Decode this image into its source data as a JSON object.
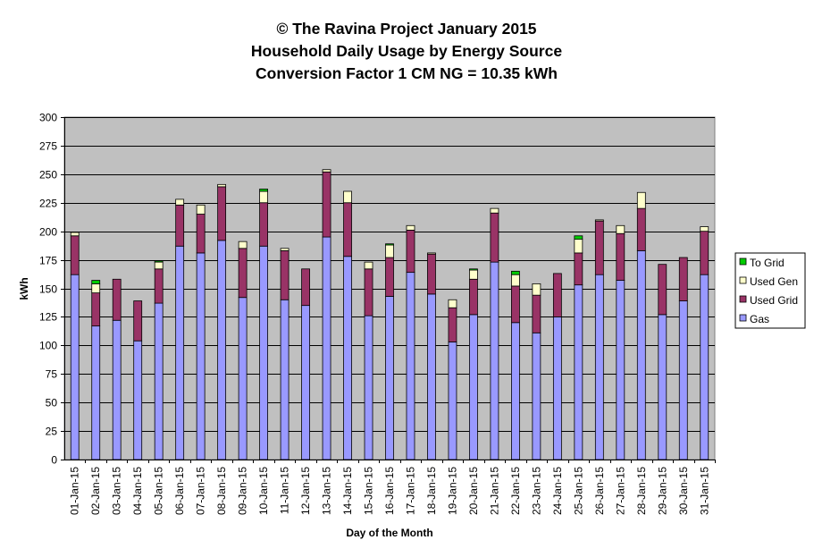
{
  "chart_data": {
    "type": "bar",
    "stacked": true,
    "title_lines": [
      "© The Ravina Project January 2015",
      "Household Daily Usage by Energy Source",
      "Conversion Factor 1 CM NG = 10.35 kWh"
    ],
    "xlabel": "Day of the Month",
    "ylabel": "kWh",
    "ylim": [
      0,
      300
    ],
    "yticks": [
      0,
      25,
      50,
      75,
      100,
      125,
      150,
      175,
      200,
      225,
      250,
      275,
      300
    ],
    "grid": true,
    "legend_position": "right",
    "categories": [
      "01-Jan-15",
      "02-Jan-15",
      "03-Jan-15",
      "04-Jan-15",
      "05-Jan-15",
      "06-Jan-15",
      "07-Jan-15",
      "08-Jan-15",
      "09-Jan-15",
      "10-Jan-15",
      "11-Jan-15",
      "12-Jan-15",
      "13-Jan-15",
      "14-Jan-15",
      "15-Jan-15",
      "16-Jan-15",
      "17-Jan-15",
      "18-Jan-15",
      "19-Jan-15",
      "20-Jan-15",
      "21-Jan-15",
      "22-Jan-15",
      "23-Jan-15",
      "24-Jan-15",
      "25-Jan-15",
      "26-Jan-15",
      "27-Jan-15",
      "28-Jan-15",
      "29-Jan-15",
      "30-Jan-15",
      "31-Jan-15"
    ],
    "series": [
      {
        "name": "Gas",
        "color": "#9999ff",
        "values": [
          162,
          117,
          122,
          104,
          137,
          187,
          181,
          192,
          142,
          187,
          140,
          135,
          195,
          178,
          126,
          143,
          164,
          145,
          103,
          127,
          173,
          120,
          111,
          125,
          153,
          162,
          157,
          183,
          127,
          139,
          162
        ]
      },
      {
        "name": "Used Grid",
        "color": "#993366",
        "values": [
          34,
          29,
          36,
          35,
          30,
          36,
          34,
          47,
          43,
          38,
          43,
          32,
          57,
          47,
          41,
          34,
          37,
          35,
          30,
          31,
          43,
          32,
          33,
          38,
          28,
          47,
          41,
          37,
          44,
          38,
          38
        ]
      },
      {
        "name": "Used Gen",
        "color": "#ffffcc",
        "values": [
          3,
          8,
          0,
          0,
          6,
          5,
          8,
          2,
          6,
          10,
          2,
          0,
          2,
          10,
          6,
          11,
          4,
          1,
          7,
          8,
          4,
          10,
          10,
          0,
          12,
          1,
          7,
          14,
          0,
          0,
          4
        ]
      },
      {
        "name": "To Grid",
        "color": "#00cc00",
        "values": [
          0,
          3,
          0,
          0,
          1,
          0,
          0,
          0,
          0,
          2,
          0,
          0,
          0,
          0,
          0,
          1,
          0,
          0,
          0,
          1,
          0,
          3,
          0,
          0,
          3,
          0,
          0,
          0,
          0,
          0,
          0
        ]
      }
    ],
    "colors": {
      "plot_background": "#c0c0c0",
      "gridline": "#000000",
      "page_background": "#ffffff"
    }
  }
}
